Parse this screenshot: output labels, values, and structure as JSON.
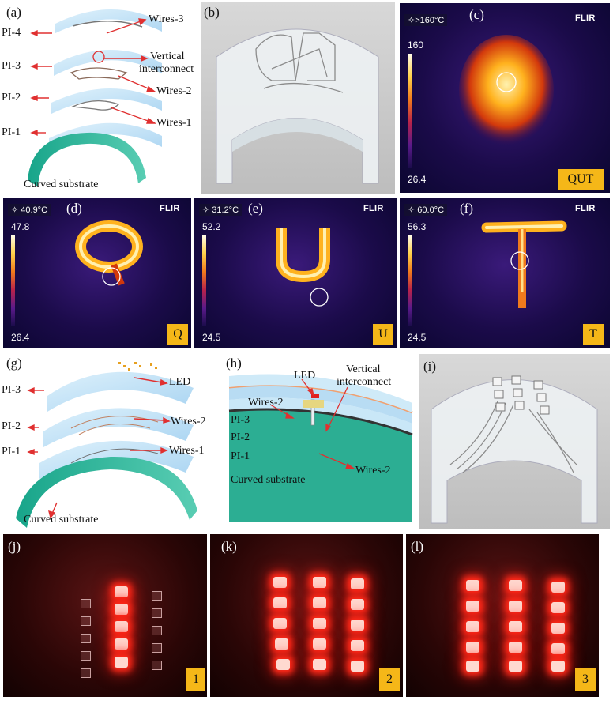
{
  "panels": {
    "a": {
      "label": "(a)",
      "layers": [
        "PI-4",
        "PI-3",
        "PI-2",
        "PI-1"
      ],
      "wires_3": "Wires-3",
      "vertical_1": "Vertical",
      "vertical_2": "interconnect",
      "wires_2": "Wires-2",
      "wires_1": "Wires-1",
      "substrate": "Curved substrate"
    },
    "b": {
      "label": "(b)"
    },
    "c": {
      "label": "(c)",
      "spot": "✧>160°C",
      "max": "160",
      "min": "26.4",
      "tag": "QUT",
      "brand": "FLIR"
    },
    "d": {
      "label": "(d)",
      "spot": "✧ 40.9°C",
      "max": "47.8",
      "min": "26.4",
      "tag": "Q",
      "brand": "FLIR"
    },
    "e": {
      "label": "(e)",
      "spot": "✧ 31.2°C",
      "max": "52.2",
      "min": "24.5",
      "tag": "U",
      "brand": "FLIR"
    },
    "f": {
      "label": "(f)",
      "spot": "✧ 60.0°C",
      "max": "56.3",
      "min": "24.5",
      "tag": "T",
      "brand": "FLIR"
    },
    "g": {
      "label": "(g)",
      "layers": [
        "PI-3",
        "PI-2",
        "PI-1"
      ],
      "led": "LED",
      "wires_2": "Wires-2",
      "wires_1": "Wires-1",
      "substrate": "Curved substrate"
    },
    "h": {
      "label": "(h)",
      "led": "LED",
      "vertical_1": "Vertical",
      "vertical_2": "interconnect",
      "wires_2_top": "Wires-2",
      "layers": [
        "PI-3",
        "PI-2",
        "PI-1"
      ],
      "wires_2_bottom": "Wires-2",
      "substrate": "Curved substrate"
    },
    "i": {
      "label": "(i)"
    },
    "j": {
      "label": "(j)",
      "tag": "1"
    },
    "k": {
      "label": "(k)",
      "tag": "2"
    },
    "l": {
      "label": "(l)",
      "tag": "3"
    }
  },
  "colors": {
    "tag_bg": "#f5b718",
    "pi_layer": "#bfe2f7",
    "substrate": "#25a98f",
    "led_red": "#ff2a1a"
  }
}
